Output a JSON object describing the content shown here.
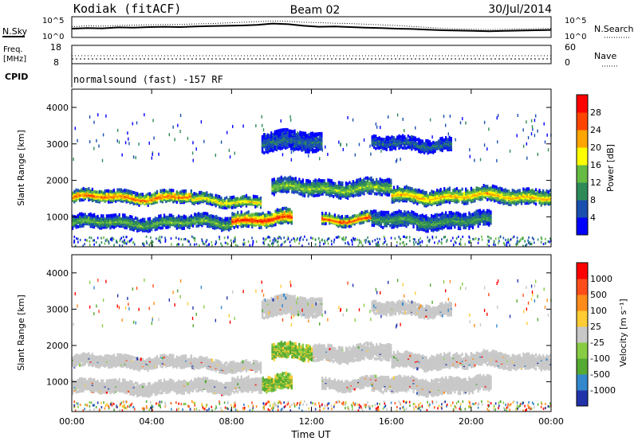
{
  "header": {
    "station": "Kodiak (fitACF)",
    "beam": "Beam 02",
    "date": "30/Jul/2014"
  },
  "noise_panel": {
    "left_label": "N.Sky",
    "right_label": "N.Search",
    "left_ticks": [
      "10^5",
      "10^0"
    ],
    "right_ticks": [
      "10^5",
      "10^0"
    ],
    "sky_noise_log": [
      2.0,
      2.2,
      2.1,
      2.4,
      2.3,
      2.5,
      2.6,
      2.5,
      2.7,
      2.8,
      2.9,
      3.0,
      3.2,
      3.6,
      3.4,
      2.9,
      2.6,
      2.7,
      2.5,
      2.3,
      2.2,
      2.0,
      1.9,
      1.7,
      1.5,
      1.4,
      1.3,
      1.2,
      1.3,
      1.4,
      1.5,
      1.6
    ],
    "search_noise_log": [
      2.6,
      2.9,
      2.8,
      3.0,
      3.1,
      3.2,
      3.3,
      3.3,
      3.5,
      3.6,
      3.8,
      4.0,
      4.2,
      4.4,
      4.3,
      4.0,
      3.9,
      3.7,
      3.6,
      3.4,
      3.2,
      3.0,
      2.7,
      2.4,
      2.1,
      1.9,
      1.8,
      1.7,
      1.8,
      1.9,
      2.0,
      2.1
    ]
  },
  "freq_panel": {
    "left_label_1": "Freq.",
    "left_label_2": "[MHz]",
    "right_label": "Nave",
    "left_ticks": [
      "18",
      "8"
    ],
    "right_ticks": [
      "60",
      "0"
    ],
    "cpid_label": "CPID",
    "cpid_text": "normalsound (fast) -157 RF"
  },
  "power_panel": {
    "ylabel": "Slant Range [km]",
    "yticks": [
      "4000",
      "3000",
      "2000",
      "1000"
    ],
    "colorbar_label": "Power [dB]",
    "colorbar_ticks": [
      "28",
      "24",
      "20",
      "16",
      "12",
      "8",
      "4"
    ],
    "colors": [
      "#0000ff",
      "#1a4fb0",
      "#2e8b57",
      "#66bb44",
      "#ffff00",
      "#ffa500",
      "#ff4500",
      "#ff0000"
    ]
  },
  "velocity_panel": {
    "ylabel": "Slant Range [km]",
    "yticks": [
      "4000",
      "3000",
      "2000",
      "1000"
    ],
    "colorbar_label": "Velocity [m s⁻¹]",
    "colorbar_ticks": [
      "1000",
      "500",
      "100",
      "25",
      "-25",
      "-100",
      "-500",
      "-1000"
    ],
    "colors": [
      "#2233aa",
      "#3388cc",
      "#55aa33",
      "#88cc44",
      "#c8c8c8",
      "#ffcc33",
      "#ff8c1a",
      "#ff4d1a",
      "#ff0000"
    ]
  },
  "x_axis": {
    "label": "Time UT",
    "ticks": [
      "00:00",
      "04:00",
      "08:00",
      "12:00",
      "16:00",
      "20:00",
      "00:00"
    ]
  },
  "chart_data": {
    "type": "heatmap",
    "x": {
      "label": "Time UT",
      "range_hours": [
        0,
        24
      ]
    },
    "y": {
      "label": "Slant Range [km]",
      "range": [
        180,
        4500
      ]
    },
    "scatter_bands_power": [
      {
        "start": 0.0,
        "end": 6.0,
        "range_center": 1550,
        "half_width": 110,
        "peak_dB": 26
      },
      {
        "start": 6.0,
        "end": 9.5,
        "range_center": 1450,
        "half_width": 100,
        "peak_dB": 20
      },
      {
        "start": 10.0,
        "end": 16.0,
        "range_center": 1800,
        "half_width": 150,
        "peak_dB": 16
      },
      {
        "start": 16.0,
        "end": 24.0,
        "range_center": 1580,
        "half_width": 140,
        "peak_dB": 22
      },
      {
        "start": 0.0,
        "end": 8.0,
        "range_center": 850,
        "half_width": 120,
        "peak_dB": 14
      },
      {
        "start": 8.0,
        "end": 11.0,
        "range_center": 950,
        "half_width": 140,
        "peak_dB": 29
      },
      {
        "start": 12.5,
        "end": 15.0,
        "range_center": 950,
        "half_width": 100,
        "peak_dB": 27
      },
      {
        "start": 15.0,
        "end": 21.0,
        "range_center": 900,
        "half_width": 150,
        "peak_dB": 12
      },
      {
        "start": 9.5,
        "end": 12.5,
        "range_center": 3050,
        "half_width": 180,
        "peak_dB": 8
      },
      {
        "start": 15.0,
        "end": 19.0,
        "range_center": 3000,
        "half_width": 120,
        "peak_dB": 8
      }
    ]
  }
}
